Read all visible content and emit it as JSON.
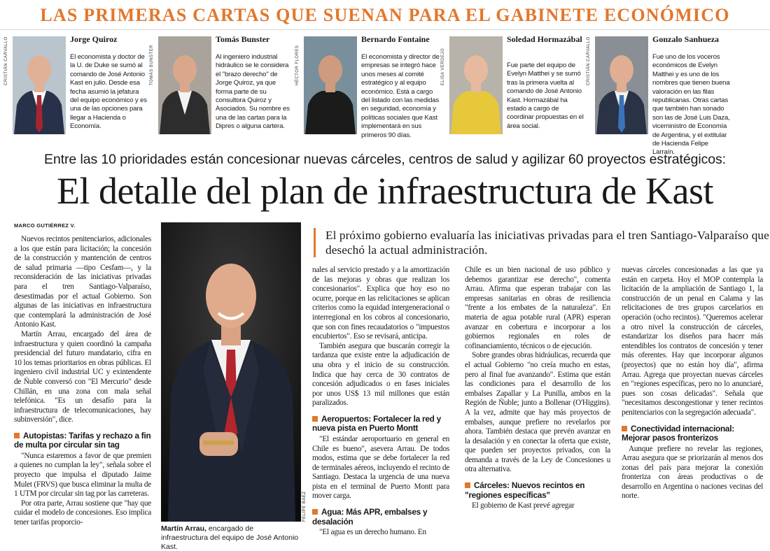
{
  "header": {
    "banner": "LAS PRIMERAS CARTAS QUE SUENAN PARA EL GABINETE ECONÓMICO"
  },
  "profiles": [
    {
      "name": "Jorge Quiroz",
      "text": "El economista y doctor de la U. de Duke se sumó al comando de José Antonio Kast en julio. Desde esa fecha asumió la jefatura del equipo económico y es una de las opciones para llegar a Hacienda o Economía.",
      "photo_credit": "CRISTIÁN CARVALLO"
    },
    {
      "name": "Tomás Bunster",
      "text": "Al ingeniero industrial hidráulico se le considera el \"brazo derecho\" de Jorge Quiroz, ya que forma parte de su consultora Quiroz y Asociados. Su nombre es una de las cartas para la Dipres o alguna cartera.",
      "photo_credit": "TOMÁS BUNSTER"
    },
    {
      "name": "Bernardo Fontaine",
      "text": "El economista y director de empresas se integró hace unos meses al comité estratégico y al equipo económico. Está a cargo del listado con las medidas en seguridad, economía y políticas sociales que Kast implementará en sus primeros 90 días.",
      "photo_credit": "HÉCTOR FLORES"
    },
    {
      "name": "Soledad Hormazábal",
      "text": "Fue parte del equipo de Evelyn Matthei y se sumó tras la primera vuelta al comando de José Antonio Kast. Hormazábal ha estado a cargo de coordinar propuestas en el área social.",
      "photo_credit": "ELISA VERDEJO"
    },
    {
      "name": "Gonzalo Sanhueza",
      "text": "Fue uno de los voceros económicos de Evelyn Matthei y es uno de los nombres que tienen buena valoración en las filas republicanas. Otras cartas que también han sonado son las de José Luis Daza, viceministro de Economía de Argentina, y el extitular de Hacienda Felipe Larraín.",
      "photo_credit": "CRISTIÁN CARVALLO"
    }
  ],
  "article": {
    "kicker": "Entre las 10 prioridades están concesionar nuevas cárceles, centros de salud y agilizar 60 proyectos estratégicos:",
    "headline": "El detalle del plan de infraestructura de Kast",
    "byline": "MARCO GUTIÉRREZ V.",
    "deck": "El próximo gobierno evaluaría las iniciativas privadas para el tren Santiago-Valparaíso que desechó la actual administración.",
    "photo": {
      "caption_name": "Martín Arrau,",
      "caption_text": "encargado de infraestructura del equipo de José Antonio Kast.",
      "credit": "FELIPE BAEZ"
    },
    "columns": [
      [
        {
          "paragraph": "Nuevos recintos penitenciarios, adicionales a los que están para licitación; la concesión de la construcción y mantención de centros de salud primaria —tipo Cesfam—, y la reconsideración de las iniciativas privadas para el tren Santiago-Valparaíso, desestimadas por el actual Gobierno. Son algunas de las iniciativas en infraestructura que contemplará la administración de José Antonio Kast."
        },
        {
          "paragraph": "Martín Arrau, encargado del área de infraestructura y quien coordinó la campaña presidencial del futuro mandatario, cifra en 10 los temas prioritarios en obras públicas. El ingeniero civil industrial UC y exintendente de Ñuble conversó con \"El Mercurio\" desde Chillán, en una zona con mala señal telefónica. \"Es un desafío para la infraestructura de telecomunicaciones, hay subinversión\", dice."
        },
        {
          "subhead": "Autopistas: Tarifas y rechazo a fin de multa por circular sin tag"
        },
        {
          "paragraph": "\"Nunca estaremos a favor de que premien a quienes no cumplan la ley\", señala sobre el proyecto que impulsa el diputado Jaime Mulet (FRVS) que busca eliminar la multa de 1 UTM por circular sin tag por las carreteras."
        },
        {
          "paragraph": "Por otra parte, Arrau sostiene que \"hay que cuidar el modelo de concesiones. Eso implica tener tarifas proporcio-"
        }
      ],
      [
        {
          "paragraph": "nales al servicio prestado y a la amortización de las mejoras y obras que realizan los concesionarios\". Explica que hoy eso no ocurre, porque en las relicitaciones se aplican criterios como la equidad intergeneracional o interregional en los cobros al concesionario, que son con fines recaudatorios o \"impuestos encubiertos\". Eso se revisará, anticipa."
        },
        {
          "paragraph": "También asegura que buscarán corregir la tardanza que existe entre la adjudicación de una obra y el inicio de su construcción. Indica que hay cerca de 30 contratos de concesión adjudicados o en fases iniciales por unos US$ 13 mil millones que están paralizados."
        },
        {
          "subhead": "Aeropuertos: Fortalecer la red y nueva pista en Puerto Montt"
        },
        {
          "paragraph": "\"El estándar aeroportuario en general en Chile es bueno\", asevera Arrau. De todos modos, estima que se debe fortalecer la red de terminales aéreos, incluyendo el recinto de Santiago. Destaca la urgencia de una nueva pista en el terminal de Puerto Montt para mover carga."
        },
        {
          "subhead": "Agua: Más APR, embalses y desalación"
        },
        {
          "paragraph": "\"El agua es un derecho humano. En"
        }
      ],
      [
        {
          "paragraph": "Chile es un bien nacional de uso público y debemos garantizar ese derecho\", comenta Arrau. Afirma que esperan trabajar con las empresas sanitarias en obras de resiliencia \"frente a los embates de la naturaleza\". En materia de agua potable rural (APR) esperan avanzar en cobertura e incorporar a los gobiernos regionales en roles de cofinanciamiento, técnicos o de ejecución."
        },
        {
          "paragraph": "Sobre grandes obras hidráulicas, recuerda que el actual Gobierno \"no creía mucho en estas, pero al final fue avanzando\". Estima que están las condiciones para el desarrollo de los embalses Zapallar y La Punilla, ambos en la Región de Ñuble; junto a Bollenar (O'Higgins). A la vez, admite que hay más proyectos de embalses, aunque prefiere no revelarlos por ahora. También destaca que prevén avanzar en la desalación y en conectar la oferta que existe, que pueden ser proyectos privados, con la demanda a través de la Ley de Concesiones u otra alternativa."
        },
        {
          "subhead": "Cárceles: Nuevos recintos en \"regiones específicas\""
        },
        {
          "paragraph": "El gobierno de Kast prevé agregar"
        }
      ],
      [
        {
          "paragraph": "nuevas cárceles concesionadas a las que ya están en carpeta. Hoy el MOP contempla la licitación de la ampliación de Santiago 1, la construcción de un penal en Calama y las relicitaciones de tres grupos carcelarios en operación (ocho recintos). \"Queremos acelerar a otro nivel la construcción de cárceles, estandarizar los diseños para hacer más entendibles los contratos de concesión y tener más oferentes. Hay que incorporar algunos (proyectos) que no están hoy día\", afirma Arrau. Agrega que proyectan nuevas cárceles en \"regiones específicas, pero no lo anunciaré, pues son cosas delicadas\". Señala que \"necesitamos descongestionar y tener recintos penitenciarios con la segregación adecuada\"."
        },
        {
          "subhead": "Conectividad internacional: Mejorar pasos fronterizos"
        },
        {
          "paragraph": "Aunque prefiere no revelar las regiones, Arrau asegura que se priorizarán al menos dos zonas del país para mejorar la conexión fronteriza con áreas productivas o de desarrollo en Argentina o naciones vecinas del norte."
        }
      ]
    ]
  }
}
